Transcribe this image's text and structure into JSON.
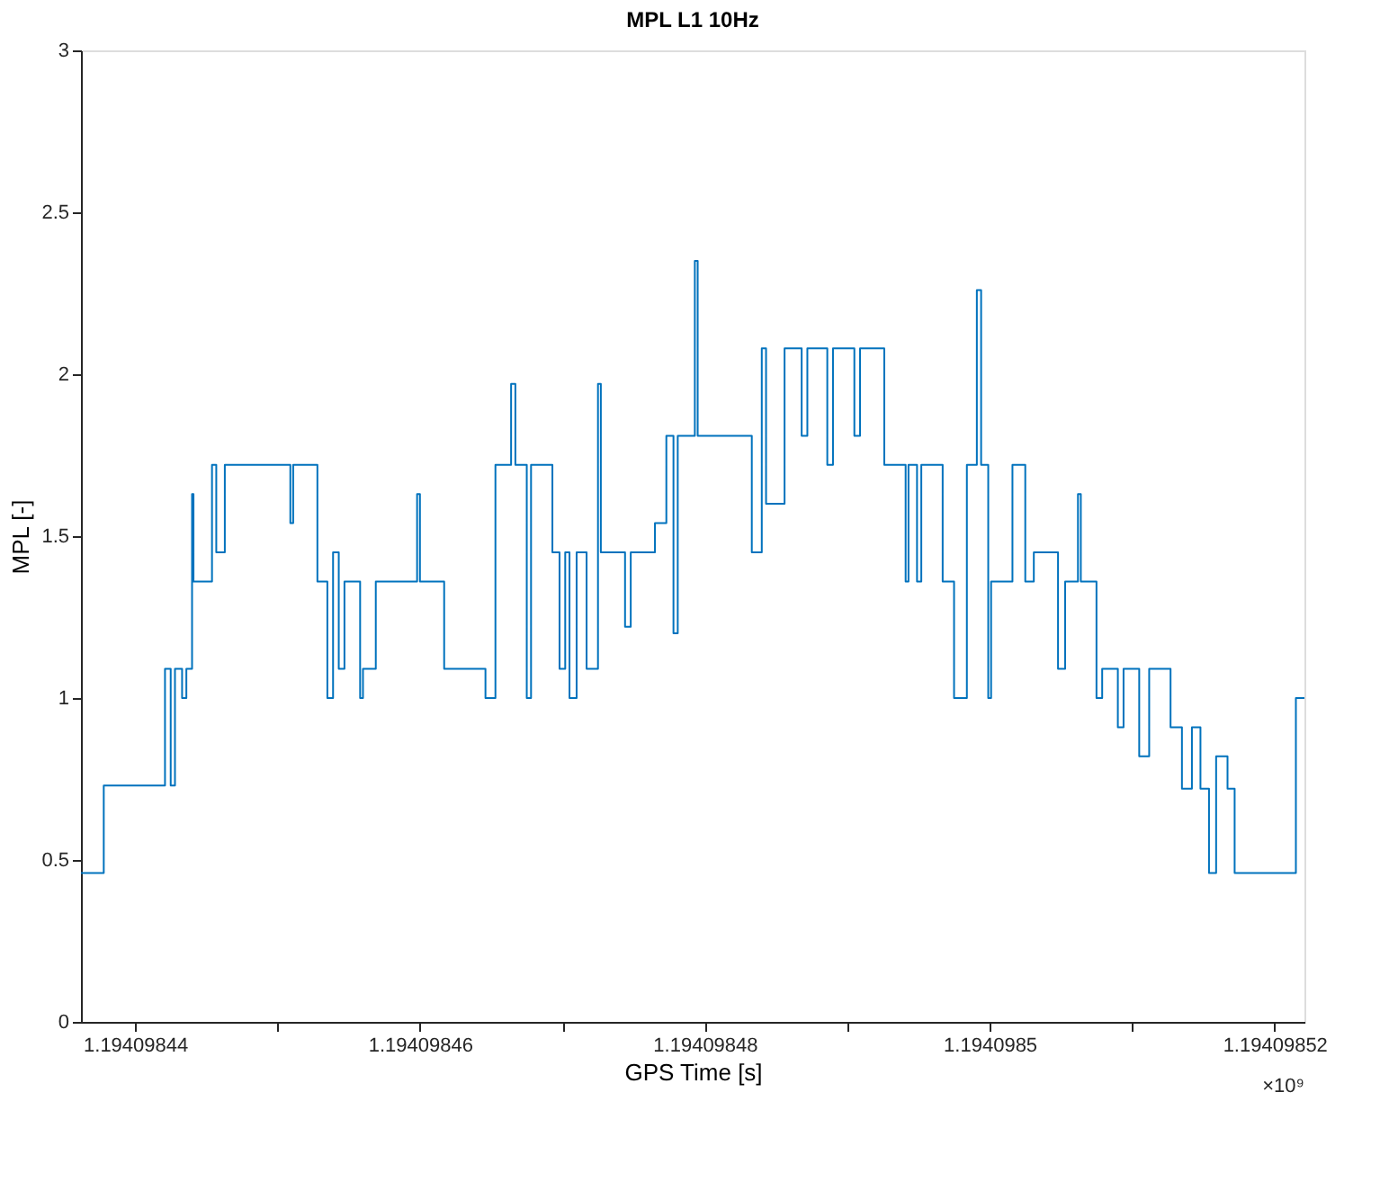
{
  "chart_data": {
    "type": "step",
    "title": "MPL L1 10Hz",
    "xlabel": "GPS Time [s]",
    "ylabel": "MPL [-]",
    "annotations": [
      "×10⁹"
    ],
    "xlim": [
      1.1940984362,
      1.1940985221
    ],
    "xticks": [
      1.19409844,
      {
        "value": 1.19409845,
        "label": null
      },
      1.19409846,
      {
        "value": 1.19409847,
        "label": null
      },
      1.19409848,
      {
        "value": 1.19409849,
        "label": null
      },
      1.1940985,
      {
        "value": 1.19409851,
        "label": null
      },
      1.19409852
    ],
    "ylim": [
      0,
      3
    ],
    "yticks": [
      0,
      0.5,
      1,
      1.5,
      2,
      2.5,
      3
    ],
    "series": [
      {
        "color": "#0072bd",
        "x": [
          1.1940984362,
          1.1940984378,
          1.1940984421,
          1.1940984425,
          1.1940984428,
          1.1940984433,
          1.1940984436,
          1.194098444,
          1.1940984441,
          1.1940984454,
          1.1940984457,
          1.1940984463,
          1.1940984509,
          1.1940984511,
          1.1940984528,
          1.1940984535,
          1.1940984539,
          1.1940984543,
          1.1940984547,
          1.1940984558,
          1.194098456,
          1.1940984569,
          1.1940984598,
          1.19409846,
          1.1940984617,
          1.1940984646,
          1.1940984653,
          1.1940984664,
          1.1940984667,
          1.1940984675,
          1.1940984678,
          1.1940984693,
          1.1940984698,
          1.1940984702,
          1.1940984705,
          1.194098471,
          1.1940984717,
          1.1940984725,
          1.1940984727,
          1.1940984744,
          1.1940984748,
          1.1940984765,
          1.1940984773,
          1.1940984778,
          1.1940984781,
          1.1940984793,
          1.1940984795,
          1.1940984833,
          1.194098484,
          1.1940984843,
          1.1940984856,
          1.1940984868,
          1.1940984872,
          1.1940984886,
          1.194098489,
          1.1940984905,
          1.1940984909,
          1.1940984926,
          1.1940984941,
          1.1940984943,
          1.1940984949,
          1.1940984952,
          1.1940984967,
          1.1940984975,
          1.1940984984,
          1.1940984991,
          1.1940984994,
          1.1940984999,
          1.1940985001,
          1.1940985016,
          1.1940985025,
          1.1940985031,
          1.1940985048,
          1.1940985053,
          1.1940985062,
          1.1940985064,
          1.1940985075,
          1.1940985079,
          1.194098509,
          1.1940985094,
          1.1940985105,
          1.1940985112,
          1.1940985127,
          1.1940985135,
          1.1940985142,
          1.1940985148,
          1.1940985154,
          1.1940985159,
          1.1940985167,
          1.1940985172,
          1.1940985215,
          1.1940985221
        ],
        "values": [
          0.46,
          0.73,
          1.09,
          0.73,
          1.09,
          1.0,
          1.09,
          1.63,
          1.36,
          1.72,
          1.45,
          1.72,
          1.54,
          1.72,
          1.36,
          1.0,
          1.45,
          1.09,
          1.36,
          1.0,
          1.09,
          1.36,
          1.63,
          1.36,
          1.09,
          1.0,
          1.72,
          1.97,
          1.72,
          1.0,
          1.72,
          1.45,
          1.09,
          1.45,
          1.0,
          1.45,
          1.09,
          1.97,
          1.45,
          1.22,
          1.45,
          1.54,
          1.81,
          1.2,
          1.81,
          2.35,
          1.81,
          1.45,
          2.08,
          1.6,
          2.08,
          1.81,
          2.08,
          1.72,
          2.08,
          1.81,
          2.08,
          1.72,
          1.36,
          1.72,
          1.36,
          1.72,
          1.36,
          1.0,
          1.72,
          2.26,
          1.72,
          1.0,
          1.36,
          1.72,
          1.36,
          1.45,
          1.09,
          1.36,
          1.63,
          1.36,
          1.0,
          1.09,
          0.91,
          1.09,
          0.82,
          1.09,
          0.91,
          0.72,
          0.91,
          0.72,
          0.46,
          0.82,
          0.72,
          0.46,
          1.0,
          1.0
        ]
      }
    ]
  }
}
